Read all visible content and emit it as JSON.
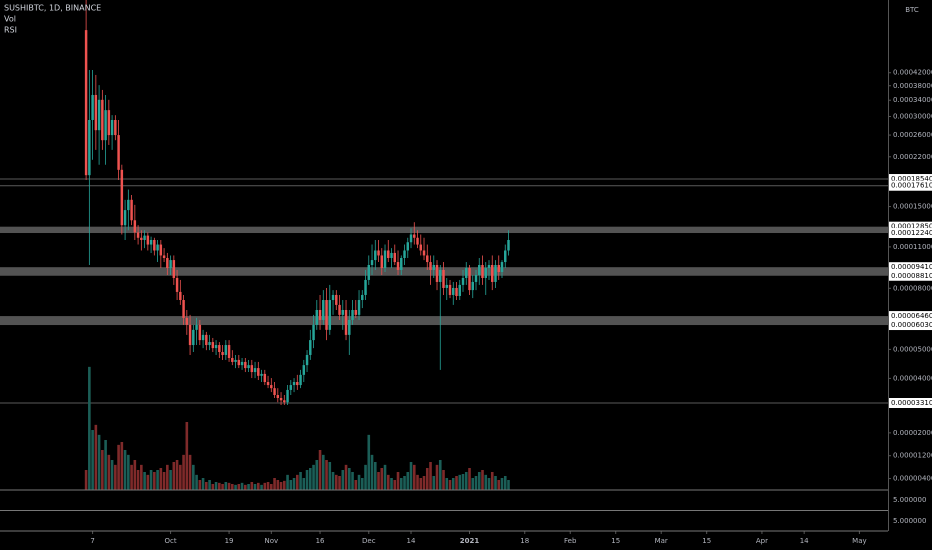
{
  "chart_data": {
    "type": "candlestick",
    "title": "SUSHIBTC, 1D, BINANCE",
    "indicators": [
      "Vol",
      "RSI"
    ],
    "currency": "BTC",
    "up_color": "#26a69a",
    "down_color": "#ef5350",
    "volume_up_color": "#1b5e57",
    "volume_down_color": "#7f2a2a",
    "log_scale": true,
    "grid": false,
    "xlim": [
      -26.5,
      246.8
    ],
    "xticks": [
      {
        "value": 2,
        "label": "7"
      },
      {
        "value": 26,
        "label": "Oct"
      },
      {
        "value": 44,
        "label": "19"
      },
      {
        "value": 57,
        "label": "Nov"
      },
      {
        "value": 72,
        "label": "16"
      },
      {
        "value": 87,
        "label": "Dec"
      },
      {
        "value": 100,
        "label": "14"
      },
      {
        "value": 118,
        "label": "2021"
      },
      {
        "value": 135,
        "label": "18"
      },
      {
        "value": 149,
        "label": "Feb"
      },
      {
        "value": 163,
        "label": "15"
      },
      {
        "value": 177,
        "label": "Mar"
      },
      {
        "value": 191,
        "label": "15"
      },
      {
        "value": 208,
        "label": "Apr"
      },
      {
        "value": 221,
        "label": "14"
      },
      {
        "value": 238,
        "label": "May"
      }
    ],
    "ylim": [
      1.695e-05,
      0.000735
    ],
    "yticks": [
      {
        "value": 0.00042,
        "label": "0.00042000"
      },
      {
        "value": 0.00038,
        "label": "0.00038000"
      },
      {
        "value": 0.00034,
        "label": "0.00034000"
      },
      {
        "value": 0.0003,
        "label": "0.00030000"
      },
      {
        "value": 0.00026,
        "label": "0.00026000"
      },
      {
        "value": 0.00022,
        "label": "0.00022000"
      },
      {
        "value": 0.00015,
        "label": "0.00015000"
      },
      {
        "value": 0.00011,
        "label": "0.00011000"
      },
      {
        "value": 8e-05,
        "label": "0.00008000"
      },
      {
        "value": 5e-05,
        "label": "0.00005000"
      },
      {
        "value": 4e-05,
        "label": "0.00004000"
      }
    ],
    "volume_ylim": [
      0,
      4.55e-05
    ],
    "volume_ticks": [
      {
        "value": 2e-05,
        "label": "0.00002000"
      },
      {
        "value": 1.2e-05,
        "label": "0.00001200"
      },
      {
        "value": 4e-06,
        "label": "0.00000400"
      }
    ],
    "levels": [
      {
        "value": 0.0001854,
        "label": "0.00018540"
      },
      {
        "value": 0.0001761,
        "label": "0.00017610"
      },
      {
        "value": 3.31e-05,
        "label": "0.00003310"
      }
    ],
    "zones": [
      {
        "top": {
          "value": 0.0001285,
          "label": "0.00012850"
        },
        "bottom": {
          "value": 0.0001224,
          "label": "0.00012240"
        }
      },
      {
        "top": {
          "value": 9.41e-05,
          "label": "0.00009410"
        },
        "bottom": {
          "value": 8.81e-05,
          "label": "0.00008810"
        }
      },
      {
        "top": {
          "value": 6.46e-05,
          "label": "0.00006460"
        },
        "bottom": {
          "value": 6.03e-05,
          "label": "0.00006030"
        }
      }
    ],
    "pane_labels": [
      "5.000000",
      "5.000000"
    ],
    "ohlc": [
      [
        0.000583,
        0.000735,
        0.000184,
        0.000191
      ],
      [
        0.000191,
        0.000429,
        9.57e-05,
        0.000292
      ],
      [
        0.000292,
        0.000429,
        0.000215,
        0.000354
      ],
      [
        0.000354,
        0.000413,
        0.000232,
        0.00027
      ],
      [
        0.00027,
        0.000382,
        0.000207,
        0.000341
      ],
      [
        0.000341,
        0.000368,
        0.000232,
        0.00025
      ],
      [
        0.00025,
        0.000354,
        0.000207,
        0.000315
      ],
      [
        0.000315,
        0.000341,
        0.000241,
        0.00026
      ],
      [
        0.00026,
        0.000303,
        0.000232,
        0.000292
      ],
      [
        0.000292,
        0.000303,
        0.00025,
        0.00026
      ],
      [
        0.00026,
        0.000292,
        0.000184,
        0.000199
      ],
      [
        0.000199,
        0.000207,
        0.000121,
        0.00013
      ],
      [
        0.00013,
        0.000158,
        0.000116,
        0.000146
      ],
      [
        0.000146,
        0.000171,
        0.000125,
        0.000158
      ],
      [
        0.000158,
        0.000164,
        0.00013,
        0.000135
      ],
      [
        0.000135,
        0.000152,
        0.000116,
        0.000123
      ],
      [
        0.000123,
        0.00013,
        0.000112,
        0.000118
      ],
      [
        0.000118,
        0.000125,
        0.000107,
        0.000116
      ],
      [
        0.000116,
        0.000125,
        0.000109,
        0.00012
      ],
      [
        0.00012,
        0.000123,
        0.000107,
        0.000112
      ],
      [
        0.000112,
        0.000119,
        0.000105,
        0.000116
      ],
      [
        0.000116,
        0.000118,
        0.000103,
        0.000107
      ],
      [
        0.000107,
        0.000116,
        9.79e-05,
        0.000112
      ],
      [
        0.000112,
        0.000116,
        9.35e-05,
        0.000103
      ],
      [
        0.000103,
        0.000109,
        9.79e-05,
        0.000101
      ],
      [
        0.000101,
        0.000105,
        8.86e-05,
        9.35e-05
      ],
      [
        9.35e-05,
        0.000103,
        8.86e-05,
        9.94e-05
      ],
      [
        9.94e-05,
        0.000103,
        8.21e-05,
        8.66e-05
      ],
      [
        8.66e-05,
        9.21e-05,
        7.31e-05,
        7.78e-05
      ],
      [
        7.78e-05,
        8.53e-05,
        7.04e-05,
        7.31e-05
      ],
      [
        7.31e-05,
        7.6e-05,
        6.04e-05,
        6.37e-05
      ],
      [
        6.37e-05,
        6.77e-05,
        5.59e-05,
        6.04e-05
      ],
      [
        6.04e-05,
        6.52e-05,
        4.79e-05,
        5.17e-05
      ],
      [
        5.17e-05,
        6.04e-05,
        4.9e-05,
        5.81e-05
      ],
      [
        5.81e-05,
        6.37e-05,
        5.17e-05,
        6.04e-05
      ],
      [
        6.04e-05,
        6.27e-05,
        5.17e-05,
        5.37e-05
      ],
      [
        5.37e-05,
        5.81e-05,
        5.05e-05,
        5.59e-05
      ],
      [
        5.59e-05,
        5.72e-05,
        4.97e-05,
        5.17e-05
      ],
      [
        5.17e-05,
        5.59e-05,
        4.97e-05,
        5.29e-05
      ],
      [
        5.29e-05,
        5.46e-05,
        4.9e-05,
        5.05e-05
      ],
      [
        5.05e-05,
        5.37e-05,
        4.79e-05,
        5.17e-05
      ],
      [
        5.17e-05,
        5.29e-05,
        4.68e-05,
        4.9e-05
      ],
      [
        4.9e-05,
        5.17e-05,
        4.61e-05,
        4.79e-05
      ],
      [
        4.79e-05,
        5.37e-05,
        4.61e-05,
        5.17e-05
      ],
      [
        5.17e-05,
        5.37e-05,
        4.54e-05,
        4.68e-05
      ],
      [
        4.68e-05,
        4.97e-05,
        4.43e-05,
        4.54e-05
      ],
      [
        4.54e-05,
        4.79e-05,
        4.33e-05,
        4.61e-05
      ],
      [
        4.61e-05,
        4.79e-05,
        4.33e-05,
        4.43e-05
      ],
      [
        4.43e-05,
        4.68e-05,
        4.27e-05,
        4.54e-05
      ],
      [
        4.54e-05,
        4.68e-05,
        4.2e-05,
        4.33e-05
      ],
      [
        4.33e-05,
        4.61e-05,
        4.2e-05,
        4.43e-05
      ],
      [
        4.43e-05,
        4.61e-05,
        4.01e-05,
        4.2e-05
      ],
      [
        4.2e-05,
        4.54e-05,
        4.01e-05,
        4.33e-05
      ],
      [
        4.33e-05,
        4.54e-05,
        3.95e-05,
        4.08e-05
      ],
      [
        4.08e-05,
        4.27e-05,
        3.89e-05,
        4.14e-05
      ],
      [
        4.14e-05,
        4.27e-05,
        3.8e-05,
        3.89e-05
      ],
      [
        3.89e-05,
        4.08e-05,
        3.71e-05,
        3.8e-05
      ],
      [
        3.8e-05,
        4.01e-05,
        3.6e-05,
        3.71e-05
      ],
      [
        3.71e-05,
        3.89e-05,
        3.44e-05,
        3.52e-05
      ],
      [
        3.52e-05,
        3.71e-05,
        3.33e-05,
        3.44e-05
      ],
      [
        3.44e-05,
        3.6e-05,
        3.26e-05,
        3.38e-05
      ],
      [
        3.38e-05,
        3.52e-05,
        3.26e-05,
        3.33e-05
      ],
      [
        3.33e-05,
        3.8e-05,
        3.26e-05,
        3.66e-05
      ],
      [
        3.66e-05,
        3.95e-05,
        3.52e-05,
        3.8e-05
      ],
      [
        3.8e-05,
        4.01e-05,
        3.6e-05,
        3.89e-05
      ],
      [
        3.89e-05,
        4.11e-05,
        3.66e-05,
        3.8e-05
      ],
      [
        3.8e-05,
        4.27e-05,
        3.71e-05,
        4.11e-05
      ],
      [
        4.11e-05,
        4.61e-05,
        3.89e-05,
        4.43e-05
      ],
      [
        4.43e-05,
        4.97e-05,
        4.2e-05,
        4.79e-05
      ],
      [
        4.79e-05,
        5.81e-05,
        4.61e-05,
        5.37e-05
      ],
      [
        5.37e-05,
        6.52e-05,
        5.05e-05,
        6.04e-05
      ],
      [
        6.04e-05,
        7.31e-05,
        5.81e-05,
        6.77e-05
      ],
      [
        6.77e-05,
        7.6e-05,
        5.81e-05,
        6.27e-05
      ],
      [
        6.27e-05,
        7.89e-05,
        6.04e-05,
        7.31e-05
      ],
      [
        7.31e-05,
        8.02e-05,
        5.37e-05,
        5.81e-05
      ],
      [
        5.81e-05,
        8.21e-05,
        5.59e-05,
        7.31e-05
      ],
      [
        7.31e-05,
        7.89e-05,
        6.52e-05,
        7.6e-05
      ],
      [
        7.6e-05,
        7.89e-05,
        6.77e-05,
        7.04e-05
      ],
      [
        7.04e-05,
        7.6e-05,
        6.27e-05,
        6.52e-05
      ],
      [
        6.52e-05,
        7.31e-05,
        5.81e-05,
        6.77e-05
      ],
      [
        6.77e-05,
        7.31e-05,
        5.37e-05,
        5.59e-05
      ],
      [
        5.59e-05,
        6.77e-05,
        4.79e-05,
        6.27e-05
      ],
      [
        6.27e-05,
        7.31e-05,
        6.04e-05,
        6.77e-05
      ],
      [
        6.77e-05,
        7.31e-05,
        6.37e-05,
        6.52e-05
      ],
      [
        6.52e-05,
        7.89e-05,
        6.27e-05,
        7.31e-05
      ],
      [
        7.31e-05,
        7.89e-05,
        6.87e-05,
        7.6e-05
      ],
      [
        7.6e-05,
        9.21e-05,
        7.31e-05,
        8.53e-05
      ],
      [
        8.53e-05,
        0.000103,
        8.21e-05,
        9.57e-05
      ],
      [
        9.57e-05,
        0.000112,
        8.86e-05,
        9.94e-05
      ],
      [
        9.94e-05,
        0.000116,
        9.21e-05,
        0.000107
      ],
      [
        0.000107,
        0.000116,
        9.79e-05,
        0.000103
      ],
      [
        0.000103,
        0.000109,
        8.86e-05,
        9.35e-05
      ],
      [
        9.35e-05,
        0.000112,
        9.07e-05,
        0.000107
      ],
      [
        0.000107,
        0.000116,
        9.79e-05,
        0.000101
      ],
      [
        0.000101,
        0.000109,
        9.35e-05,
        0.000105
      ],
      [
        0.000105,
        0.000112,
        9.57e-05,
        9.79e-05
      ],
      [
        9.79e-05,
        0.000107,
        8.86e-05,
        9.21e-05
      ],
      [
        9.21e-05,
        0.000103,
        8.86e-05,
        0.000101
      ],
      [
        0.000101,
        0.000112,
        9.57e-05,
        0.000107
      ],
      [
        0.000107,
        0.000118,
        0.000101,
        0.000114
      ],
      [
        0.000114,
        0.000127,
        0.000109,
        0.000121
      ],
      [
        0.000121,
        0.000133,
        0.000112,
        0.000118
      ],
      [
        0.000118,
        0.000125,
        0.000109,
        0.000112
      ],
      [
        0.000112,
        0.000121,
        0.000103,
        0.000107
      ],
      [
        0.000107,
        0.000118,
        9.94e-05,
        0.000103
      ],
      [
        0.000103,
        0.000112,
        9.21e-05,
        9.79e-05
      ],
      [
        9.79e-05,
        0.000103,
        8.21e-05,
        9.21e-05
      ],
      [
        9.21e-05,
        0.000103,
        8.66e-05,
        9.57e-05
      ],
      [
        9.57e-05,
        9.94e-05,
        7.89e-05,
        8.4e-05
      ],
      [
        8.4e-05,
        9.57e-05,
        4.27e-05,
        9.21e-05
      ],
      [
        9.21e-05,
        9.79e-05,
        7.6e-05,
        8.02e-05
      ],
      [
        8.02e-05,
        8.66e-05,
        7.31e-05,
        8.21e-05
      ],
      [
        8.21e-05,
        8.53e-05,
        7.42e-05,
        7.6e-05
      ],
      [
        7.6e-05,
        8.4e-05,
        7.04e-05,
        8.02e-05
      ],
      [
        8.02e-05,
        8.4e-05,
        7.31e-05,
        7.54e-05
      ],
      [
        7.54e-05,
        8.53e-05,
        7.31e-05,
        8.21e-05
      ],
      [
        8.21e-05,
        9.21e-05,
        7.78e-05,
        8.66e-05
      ],
      [
        8.66e-05,
        9.79e-05,
        8.21e-05,
        9.35e-05
      ],
      [
        9.35e-05,
        9.57e-05,
        7.6e-05,
        7.89e-05
      ],
      [
        7.89e-05,
        8.86e-05,
        7.42e-05,
        8.4e-05
      ],
      [
        8.4e-05,
        9.21e-05,
        7.89e-05,
        8.86e-05
      ],
      [
        8.86e-05,
        0.000101,
        8.21e-05,
        9.57e-05
      ],
      [
        9.57e-05,
        0.000103,
        8.21e-05,
        8.66e-05
      ],
      [
        8.66e-05,
        9.79e-05,
        7.6e-05,
        9.35e-05
      ],
      [
        9.35e-05,
        9.94e-05,
        8.53e-05,
        9.57e-05
      ],
      [
        9.57e-05,
        0.000103,
        7.89e-05,
        8.4e-05
      ],
      [
        8.4e-05,
        9.94e-05,
        8.02e-05,
        9.57e-05
      ],
      [
        9.57e-05,
        0.000103,
        8.53e-05,
        9.07e-05
      ],
      [
        9.07e-05,
        9.94e-05,
        8.66e-05,
        9.79e-05
      ],
      [
        9.79e-05,
        0.000112,
        9.35e-05,
        0.000107
      ],
      [
        0.000107,
        0.000125,
        0.000103,
        0.000116
      ]
    ],
    "volume": [
      7e-06,
      4.31e-05,
      2.1e-05,
      2.28e-05,
      1.93e-05,
      1.4e-05,
      1.75e-05,
      1.23e-05,
      1.05e-05,
      8.8e-06,
      1.58e-05,
      1.68e-05,
      1.4e-05,
      1.23e-05,
      8.8e-06,
      1.05e-05,
      7e-06,
      8.8e-06,
      6.3e-06,
      5.3e-06,
      7e-06,
      6.3e-06,
      7e-06,
      7.7e-06,
      6.3e-06,
      8.8e-06,
      7e-06,
      9.8e-06,
      1.05e-05,
      8.8e-06,
      1.23e-05,
      2.38e-05,
      1.23e-05,
      8.8e-06,
      5.3e-06,
      3.5e-06,
      4.2e-06,
      2.8e-06,
      3.5e-06,
      2.1e-06,
      2.8e-06,
      2.5e-06,
      2.1e-06,
      2.8e-06,
      2.5e-06,
      2.1e-06,
      1.8e-06,
      2.1e-06,
      2.5e-06,
      1.8e-06,
      2.1e-06,
      2.8e-06,
      2.1e-06,
      2.5e-06,
      1.8e-06,
      2.5e-06,
      2.8e-06,
      2.1e-06,
      4.2e-06,
      3.5e-06,
      2.8e-06,
      3.2e-06,
      5.3e-06,
      3.5e-06,
      4.2e-06,
      5.3e-06,
      6.3e-06,
      4.2e-06,
      7e-06,
      7.7e-06,
      8.8e-06,
      1.05e-05,
      1.4e-05,
      1.23e-05,
      1.05e-05,
      9.8e-06,
      6.3e-06,
      5.3e-06,
      4.9e-06,
      7e-06,
      8.8e-06,
      7.7e-06,
      6.3e-06,
      3.5e-06,
      5.3e-06,
      4.2e-06,
      8.8e-06,
      1.93e-05,
      1.23e-05,
      9.8e-06,
      6.3e-06,
      7.7e-06,
      8.8e-06,
      5.3e-06,
      4.2e-06,
      3.5e-06,
      6.3e-06,
      4.2e-06,
      4.9e-06,
      6.3e-06,
      9.8e-06,
      8.8e-06,
      5.3e-06,
      4.2e-06,
      4.9e-06,
      7.7e-06,
      9.8e-06,
      4.9e-06,
      8.8e-06,
      1.05e-05,
      7e-06,
      4.2e-06,
      3.5e-06,
      4.2e-06,
      4.9e-06,
      5.3e-06,
      5.6e-06,
      6.3e-06,
      7.7e-06,
      4.2e-06,
      4.9e-06,
      6.3e-06,
      7e-06,
      5.3e-06,
      4.2e-06,
      6.3e-06,
      4.9e-06,
      3.5e-06,
      4.2e-06,
      4.9e-06,
      3.5e-06
    ]
  }
}
